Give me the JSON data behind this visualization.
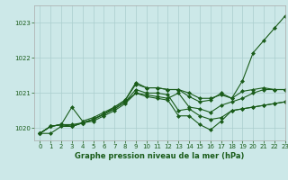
{
  "background_color": "#cce8e8",
  "grid_color": "#aacece",
  "line_color": "#1a5c1a",
  "title": "Graphe pression niveau de la mer (hPa)",
  "xlim": [
    -0.5,
    23
  ],
  "ylim": [
    1019.65,
    1023.5
  ],
  "yticks": [
    1020,
    1021,
    1022,
    1023
  ],
  "xticks": [
    0,
    1,
    2,
    3,
    4,
    5,
    6,
    7,
    8,
    9,
    10,
    11,
    12,
    13,
    14,
    15,
    16,
    17,
    18,
    19,
    20,
    21,
    22,
    23
  ],
  "series": [
    [
      1019.85,
      1019.85,
      1020.05,
      1020.05,
      1020.15,
      1020.25,
      1020.4,
      1020.6,
      1020.8,
      1021.25,
      1021.15,
      1021.15,
      1021.1,
      1021.1,
      1020.9,
      1020.75,
      1020.8,
      1021.0,
      1020.85,
      1021.35,
      1022.15,
      1022.5,
      1022.85,
      1023.2
    ],
    [
      1019.85,
      1020.05,
      1020.1,
      1020.6,
      1020.2,
      1020.3,
      1020.45,
      1020.6,
      1020.8,
      1021.3,
      1021.15,
      1021.15,
      1021.1,
      1021.1,
      1021.0,
      1020.85,
      1020.85,
      1020.95,
      1020.85,
      1021.05,
      1021.1,
      1021.15,
      1021.1,
      1021.1
    ],
    [
      1019.85,
      1020.05,
      1020.1,
      1020.1,
      1020.15,
      1020.25,
      1020.4,
      1020.55,
      1020.75,
      1021.1,
      1021.0,
      1021.0,
      1020.95,
      1020.5,
      1020.55,
      1020.35,
      1020.25,
      1020.3,
      1020.5,
      1020.55,
      1020.6,
      1020.65,
      1020.7,
      1020.75
    ],
    [
      1019.85,
      1020.05,
      1020.1,
      1020.05,
      1020.15,
      1020.25,
      1020.4,
      1020.55,
      1020.75,
      1021.0,
      1020.95,
      1020.9,
      1020.85,
      1021.0,
      1020.6,
      1020.55,
      1020.45,
      1020.65,
      1020.75,
      1020.85,
      1021.0,
      1021.1,
      1021.1,
      1021.1
    ],
    [
      1019.85,
      1020.05,
      1020.1,
      1020.05,
      1020.15,
      1020.2,
      1020.35,
      1020.5,
      1020.7,
      1021.0,
      1020.9,
      1020.85,
      1020.8,
      1020.35,
      1020.35,
      1020.1,
      1019.95,
      1020.2,
      1020.5,
      1020.55,
      1020.6,
      1020.65,
      1020.7,
      1020.75
    ]
  ]
}
